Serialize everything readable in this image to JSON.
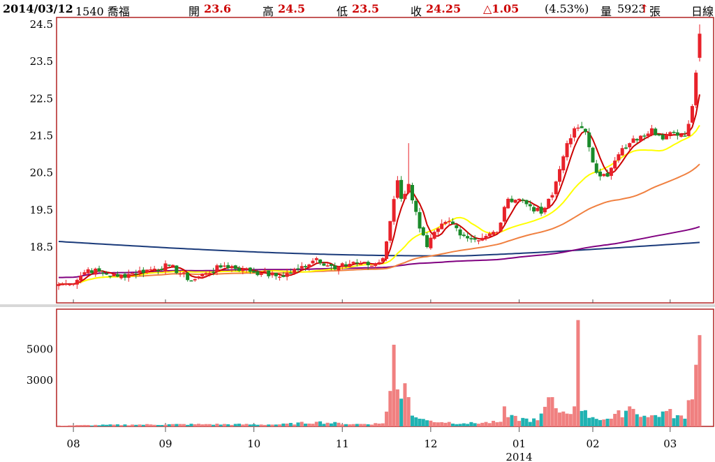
{
  "header": {
    "date": "2014/03/12",
    "stock": "1540 喬福",
    "open_label": "開",
    "open_value": "23.6",
    "high_label": "高",
    "high_value": "24.5",
    "low_label": "低",
    "low_value": "23.5",
    "close_label": "收",
    "close_value": "24.25",
    "change": "△1.05",
    "change_pct": "(4.53%)",
    "volume_label": "量",
    "volume_value": "5923",
    "volume_arrow": "↑",
    "volume_unit": "張",
    "period": "日線"
  },
  "colors": {
    "up": "#e8222a",
    "down": "#1a8a2a",
    "vol_up": "#f08080",
    "vol_down": "#20b2b2",
    "border": "#b22222",
    "ma5": "#cc0000",
    "ma20": "#ffff00",
    "ma60": "#f08040",
    "ma120": "#800080",
    "ma240": "#1a3a7a"
  },
  "chart_data": [
    {
      "type": "candlestick",
      "ylim": [
        17.4,
        24.7
      ],
      "y_ticks": [
        "24.5",
        "23.5",
        "22.5",
        "21.5",
        "20.5",
        "19.5",
        "18.5"
      ],
      "x_tick_labels": [
        "08",
        "09",
        "10",
        "11",
        "12",
        "01",
        "02",
        "03"
      ],
      "x_year_label": "2014",
      "close_anchors": [
        [
          0,
          17.5
        ],
        [
          3,
          17.5
        ],
        [
          8,
          17.9
        ],
        [
          12,
          17.8
        ],
        [
          16,
          17.7
        ],
        [
          20,
          17.8
        ],
        [
          25,
          17.9
        ],
        [
          30,
          18.0
        ],
        [
          36,
          17.6
        ],
        [
          40,
          17.8
        ],
        [
          45,
          18.0
        ],
        [
          50,
          17.9
        ],
        [
          55,
          17.8
        ],
        [
          60,
          17.7
        ],
        [
          65,
          17.9
        ],
        [
          70,
          18.2
        ],
        [
          75,
          17.9
        ],
        [
          80,
          18.1
        ],
        [
          85,
          18.0
        ],
        [
          88,
          18.2
        ],
        [
          90,
          19.2
        ],
        [
          92,
          20.3
        ],
        [
          93,
          19.8
        ],
        [
          95,
          20.2
        ],
        [
          98,
          19.0
        ],
        [
          100,
          18.5
        ],
        [
          103,
          19.0
        ],
        [
          106,
          19.2
        ],
        [
          110,
          18.8
        ],
        [
          113,
          18.7
        ],
        [
          116,
          18.8
        ],
        [
          119,
          18.9
        ],
        [
          122,
          19.8
        ],
        [
          125,
          19.8
        ],
        [
          128,
          19.6
        ],
        [
          131,
          19.4
        ],
        [
          134,
          19.9
        ],
        [
          136,
          20.6
        ],
        [
          138,
          21.3
        ],
        [
          140,
          21.7
        ],
        [
          143,
          21.6
        ],
        [
          146,
          20.5
        ],
        [
          149,
          20.4
        ],
        [
          152,
          21.0
        ],
        [
          155,
          21.3
        ],
        [
          158,
          21.5
        ],
        [
          161,
          21.7
        ],
        [
          164,
          21.4
        ],
        [
          167,
          21.6
        ],
        [
          170,
          21.5
        ],
        [
          172,
          22.3
        ],
        [
          173,
          23.2
        ],
        [
          174,
          24.25
        ]
      ],
      "volume_anchors": [
        [
          0,
          60
        ],
        [
          20,
          120
        ],
        [
          40,
          150
        ],
        [
          60,
          130
        ],
        [
          70,
          300
        ],
        [
          80,
          150
        ],
        [
          88,
          200
        ],
        [
          90,
          2300
        ],
        [
          91,
          5300
        ],
        [
          92,
          2400
        ],
        [
          93,
          1800
        ],
        [
          94,
          2800
        ],
        [
          95,
          1900
        ],
        [
          96,
          700
        ],
        [
          98,
          500
        ],
        [
          100,
          400
        ],
        [
          110,
          200
        ],
        [
          120,
          300
        ],
        [
          121,
          1300
        ],
        [
          122,
          600
        ],
        [
          130,
          400
        ],
        [
          134,
          1900
        ],
        [
          136,
          900
        ],
        [
          140,
          1300
        ],
        [
          141,
          6900
        ],
        [
          142,
          1000
        ],
        [
          145,
          600
        ],
        [
          150,
          500
        ],
        [
          155,
          1300
        ],
        [
          160,
          600
        ],
        [
          165,
          1000
        ],
        [
          170,
          500
        ],
        [
          173,
          4000
        ],
        [
          174,
          5923
        ]
      ],
      "moving_averages": [
        "MA5",
        "MA20",
        "MA60",
        "MA120",
        "MA240"
      ],
      "ma240_start": 18.65,
      "ma240_end": 18.5
    },
    {
      "type": "bar",
      "title": "volume",
      "y_ticks": [
        "5000",
        "3000"
      ],
      "ylim": [
        0,
        7200
      ]
    }
  ]
}
